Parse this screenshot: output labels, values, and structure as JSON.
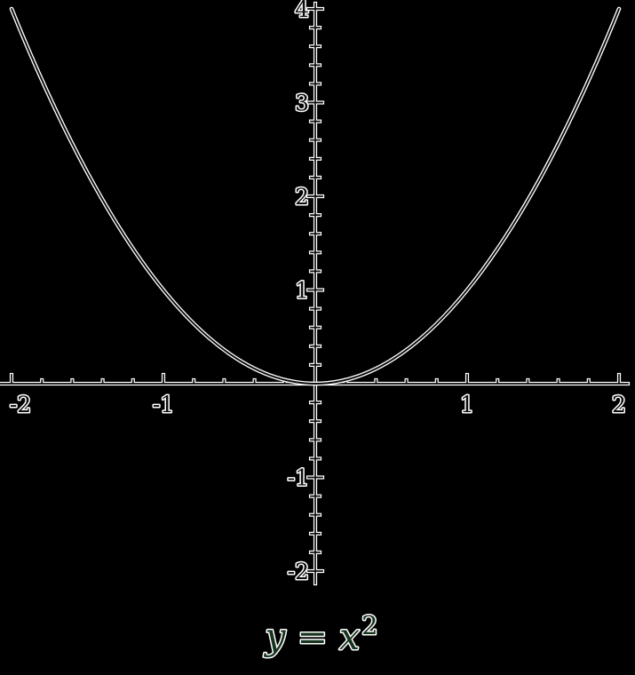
{
  "figure": {
    "background": "#000000"
  },
  "chart_data": {
    "type": "line",
    "title": "y = x^2",
    "title_parts": {
      "base": "y = x",
      "exponent": "2"
    },
    "equation": "y = x^2",
    "xlabel": "",
    "ylabel": "",
    "xlim": [
      -2,
      2
    ],
    "ylim": [
      -2,
      4
    ],
    "grid": false,
    "legend": "none",
    "axes_style": "centered-cross",
    "minor_tick_step": 0.2,
    "x_ticks": [
      {
        "v": -2,
        "label": "-2"
      },
      {
        "v": -1,
        "label": "-1"
      },
      {
        "v": 1,
        "label": "1"
      },
      {
        "v": 2,
        "label": "2"
      }
    ],
    "y_ticks": [
      {
        "v": 4,
        "label": "4"
      },
      {
        "v": 3,
        "label": "3"
      },
      {
        "v": 2,
        "label": "2"
      },
      {
        "v": 1,
        "label": "1"
      },
      {
        "v": -1,
        "label": "-1"
      },
      {
        "v": -2,
        "label": "-2"
      }
    ],
    "series": [
      {
        "name": "y = x^2",
        "x": [
          -2,
          -1.5,
          -1,
          -0.5,
          0,
          0.5,
          1,
          1.5,
          2
        ],
        "y": [
          4,
          2.25,
          1,
          0.25,
          0,
          0.25,
          1,
          2.25,
          4
        ]
      }
    ],
    "colors": {
      "background": "#000000",
      "line_outline": "#ffffff",
      "line_core": "#0d0d0d",
      "label_fill": "#0d0d0d",
      "title_fill": "#16341d"
    }
  }
}
